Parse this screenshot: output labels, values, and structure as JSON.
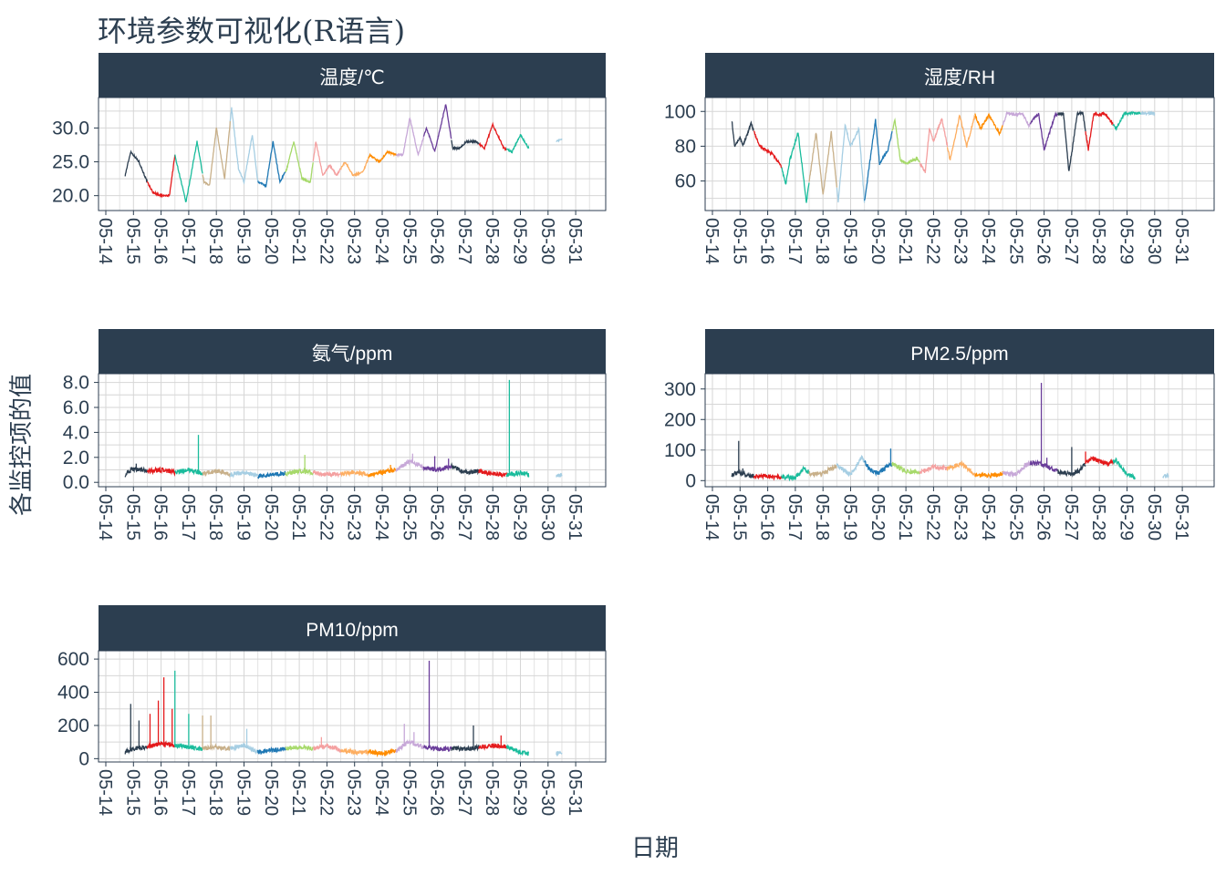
{
  "chart_data": {
    "type": "line",
    "title": "环境参数可视化(R语言)",
    "xlabel": "日期",
    "ylabel": "各监控项的值",
    "grid": true,
    "legend": "none",
    "x_ticks": [
      "05-14",
      "05-15",
      "05-16",
      "05-17",
      "05-18",
      "05-19",
      "05-20",
      "05-21",
      "05-22",
      "05-23",
      "05-24",
      "05-25",
      "05-26",
      "05-27",
      "05-28",
      "05-29",
      "05-30",
      "05-31"
    ],
    "xlim": [
      0,
      17.5
    ],
    "day_colors": [
      "#2c3e50",
      "#e41a1c",
      "#1abc9c",
      "#c8b08a",
      "#a6cee3",
      "#1f78b4",
      "#a6d96a",
      "#f4a0a0",
      "#fdae61",
      "#ff8c00",
      "#c7a8d8",
      "#6a3d9a",
      "#2c3e50",
      "#e41a1c",
      "#1abc9c",
      "#a6cee3"
    ],
    "facets": [
      {
        "name": "温度/℃",
        "ylim": [
          17.8,
          34.5
        ],
        "y_ticks": [
          20,
          25,
          30
        ],
        "y_tick_labels": [
          "20.0",
          "25.0",
          "30.0"
        ],
        "gaps": [
          [
            15.3,
            16.3
          ]
        ],
        "key_x": [
          0.7,
          0.9,
          1.2,
          1.5,
          1.7,
          2.0,
          2.3,
          2.5,
          2.9,
          3.3,
          3.55,
          3.75,
          4.0,
          4.3,
          4.55,
          4.8,
          5.0,
          5.3,
          5.5,
          5.8,
          6.05,
          6.3,
          6.55,
          6.8,
          7.1,
          7.4,
          7.6,
          7.85,
          8.1,
          8.35,
          8.65,
          8.95,
          9.3,
          9.55,
          9.9,
          10.2,
          10.5,
          10.75,
          11.0,
          11.3,
          11.6,
          11.9,
          12.3,
          12.55,
          12.8,
          13.05,
          13.4,
          13.7,
          14.0,
          14.4,
          14.7,
          15.0,
          15.3,
          16.3,
          16.6,
          16.95
        ],
        "key_y": [
          23,
          26.5,
          25,
          22,
          20.5,
          20,
          20,
          26,
          19,
          28,
          22,
          21.5,
          30,
          22.5,
          33,
          24,
          22,
          29,
          22,
          21.5,
          28,
          22,
          24,
          28,
          22.5,
          22,
          28,
          23,
          24.5,
          23,
          25,
          23,
          23.5,
          26,
          25,
          26.5,
          26,
          26,
          31.5,
          26,
          30,
          26.5,
          33.5,
          27,
          27,
          28,
          28,
          27,
          30.5,
          27,
          26.5,
          29,
          27,
          28,
          28.5,
          27
        ]
      },
      {
        "name": "湿度/RH",
        "ylim": [
          43,
          108
        ],
        "y_ticks": [
          60,
          80,
          100
        ],
        "y_tick_labels": [
          "60",
          "80",
          "100"
        ],
        "gaps": [
          [
            16.0,
            16.9
          ]
        ],
        "key_x": [
          0.7,
          0.8,
          1.0,
          1.1,
          1.4,
          1.7,
          1.9,
          2.2,
          2.5,
          2.65,
          2.8,
          3.1,
          3.4,
          3.75,
          4.0,
          4.3,
          4.55,
          4.8,
          5.0,
          5.3,
          5.5,
          5.9,
          6.05,
          6.35,
          6.6,
          6.8,
          7.0,
          7.4,
          7.7,
          7.85,
          8.0,
          8.3,
          8.6,
          8.95,
          9.2,
          9.5,
          9.7,
          10.0,
          10.4,
          10.65,
          11.0,
          11.2,
          11.45,
          11.8,
          12.0,
          12.4,
          12.7,
          12.9,
          13.2,
          13.4,
          13.6,
          13.8,
          14.0,
          14.2,
          14.6,
          14.9,
          15.1,
          15.3,
          16.0,
          16.9,
          17.0,
          17.1
        ],
        "key_y": [
          95,
          80,
          85,
          80,
          93,
          80,
          78,
          75,
          68,
          58,
          72,
          88,
          48,
          88,
          52,
          88,
          48,
          92,
          80,
          90,
          48,
          95,
          70,
          78,
          95,
          72,
          70,
          73,
          65,
          90,
          83,
          96,
          72,
          98,
          80,
          98,
          90,
          98,
          87,
          99,
          98,
          99,
          92,
          99,
          78,
          98,
          99,
          65,
          99,
          99,
          78,
          99,
          98,
          99,
          90,
          99,
          99,
          99,
          99,
          98,
          97,
          98
        ]
      },
      {
        "name": "氨气/ppm",
        "ylim": [
          -0.35,
          8.7
        ],
        "y_ticks": [
          0,
          2,
          4,
          6,
          8
        ],
        "y_tick_labels": [
          "0.0",
          "2.0",
          "4.0",
          "6.0",
          "8.0"
        ],
        "gaps": [
          [
            15.3,
            16.3
          ]
        ],
        "key_x": [
          0.7,
          1.0,
          1.5,
          2.0,
          2.5,
          3.0,
          3.5,
          4.0,
          4.5,
          5.0,
          5.5,
          6.0,
          6.5,
          7.0,
          7.5,
          8.0,
          8.5,
          9.0,
          9.5,
          10.0,
          10.5,
          11.0,
          11.5,
          12.0,
          12.5,
          13.0,
          13.5,
          14.0,
          14.5,
          15.0,
          15.3,
          16.3,
          16.6,
          16.95
        ],
        "key_y": [
          0.6,
          1.1,
          0.9,
          1.0,
          0.8,
          1.0,
          0.7,
          0.9,
          0.6,
          0.8,
          0.5,
          0.6,
          0.7,
          0.9,
          0.8,
          0.6,
          0.7,
          0.8,
          0.6,
          0.8,
          1.0,
          1.7,
          1.2,
          1.0,
          1.3,
          0.8,
          0.9,
          0.7,
          0.6,
          0.8,
          0.6,
          0.5,
          0.6,
          0.5
        ],
        "spikes_x": [
          1.1,
          3.35,
          7.2,
          10.3,
          11.1,
          11.9,
          12.4,
          14.6
        ],
        "spikes_y": [
          1.5,
          3.8,
          2.2,
          1.4,
          2.3,
          2.1,
          1.9,
          8.2
        ]
      },
      {
        "name": "PM2.5/ppm",
        "ylim": [
          -20,
          350
        ],
        "y_ticks": [
          0,
          100,
          200,
          300
        ],
        "y_tick_labels": [
          "0",
          "100",
          "200",
          "300"
        ],
        "gaps": [
          [
            15.3,
            16.3
          ]
        ],
        "key_x": [
          0.7,
          1.0,
          1.4,
          2.0,
          2.5,
          3.0,
          3.3,
          3.6,
          4.0,
          4.5,
          5.0,
          5.4,
          5.7,
          6.0,
          6.5,
          7.0,
          7.5,
          8.0,
          8.5,
          9.0,
          9.5,
          10.0,
          10.5,
          11.0,
          11.3,
          11.6,
          12.0,
          12.5,
          13.0,
          13.3,
          13.7,
          14.0,
          14.3,
          14.6,
          15.0,
          15.3,
          16.3,
          16.6,
          16.95
        ],
        "key_y": [
          20,
          25,
          15,
          15,
          10,
          10,
          40,
          20,
          25,
          50,
          20,
          75,
          35,
          25,
          55,
          30,
          25,
          45,
          40,
          55,
          20,
          15,
          25,
          20,
          50,
          60,
          50,
          30,
          20,
          35,
          75,
          65,
          55,
          65,
          20,
          10,
          10,
          20,
          15
        ],
        "spikes_x": [
          0.95,
          1.1,
          6.45,
          11.9,
          12.1,
          13.0,
          13.5
        ],
        "spikes_y": [
          130,
          40,
          105,
          320,
          75,
          110,
          95
        ]
      },
      {
        "name": "PM10/ppm",
        "ylim": [
          -20,
          650
        ],
        "y_ticks": [
          0,
          200,
          400,
          600
        ],
        "y_tick_labels": [
          "0",
          "200",
          "400",
          "600"
        ],
        "gaps": [
          [
            15.3,
            16.3
          ]
        ],
        "key_x": [
          0.7,
          1.0,
          1.5,
          2.0,
          2.5,
          3.0,
          3.5,
          4.0,
          4.5,
          5.0,
          5.5,
          6.0,
          6.5,
          7.0,
          7.5,
          8.0,
          8.5,
          9.0,
          9.5,
          10.0,
          10.5,
          11.0,
          11.5,
          12.0,
          12.5,
          13.0,
          13.5,
          14.0,
          14.5,
          15.0,
          15.3,
          16.3,
          16.6,
          16.95
        ],
        "key_y": [
          40,
          60,
          70,
          90,
          80,
          70,
          60,
          70,
          60,
          80,
          40,
          50,
          60,
          70,
          60,
          80,
          50,
          40,
          40,
          30,
          50,
          100,
          70,
          60,
          60,
          60,
          70,
          80,
          70,
          40,
          30,
          30,
          40,
          30
        ],
        "spikes_x": [
          0.9,
          1.2,
          1.6,
          1.9,
          2.1,
          2.4,
          2.5,
          3.0,
          3.5,
          3.8,
          5.1,
          7.8,
          10.8,
          11.15,
          11.7,
          13.3,
          14.3
        ],
        "spikes_y": [
          330,
          230,
          270,
          350,
          490,
          300,
          530,
          270,
          260,
          260,
          180,
          130,
          210,
          160,
          590,
          200,
          140
        ]
      }
    ]
  }
}
